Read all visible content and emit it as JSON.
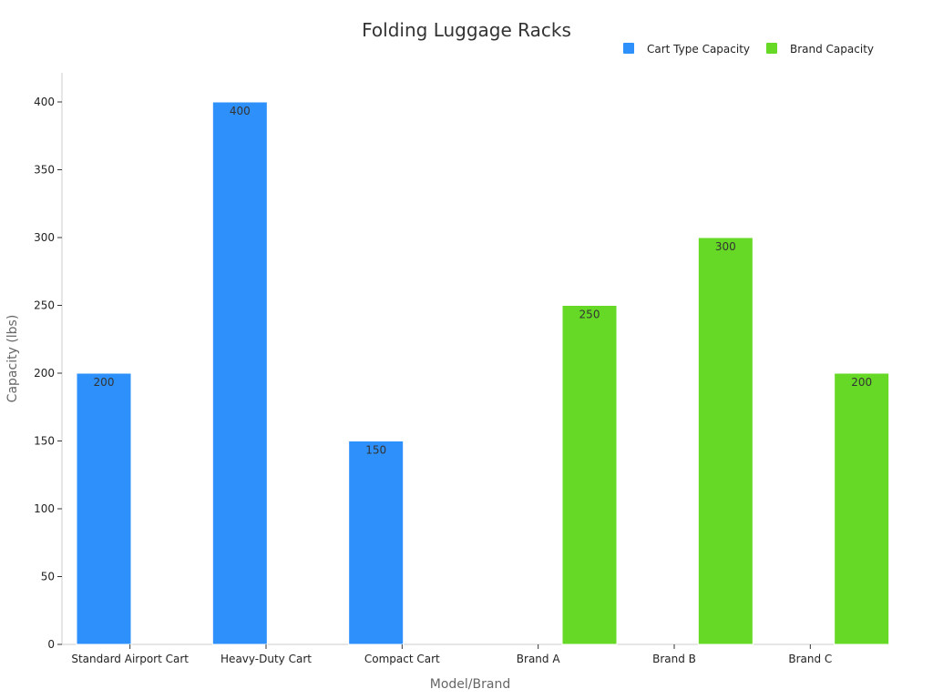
{
  "chart_data": {
    "type": "bar",
    "title": "Folding Luggage Racks",
    "xlabel": "Model/Brand",
    "ylabel": "Capacity (lbs)",
    "categories": [
      "Standard Airport Cart",
      "Heavy-Duty Cart",
      "Compact Cart",
      "Brand A",
      "Brand B",
      "Brand C"
    ],
    "series": [
      {
        "name": "Cart Type Capacity",
        "color": "#2e90fa",
        "values": [
          200,
          400,
          150,
          null,
          null,
          null
        ]
      },
      {
        "name": "Brand Capacity",
        "color": "#66d926",
        "values": [
          null,
          null,
          null,
          250,
          300,
          200
        ]
      }
    ],
    "yticks": [
      0,
      50,
      100,
      150,
      200,
      250,
      300,
      350,
      400
    ],
    "ylim": [
      0,
      420
    ],
    "grid": false,
    "legend_position": "top-right"
  }
}
